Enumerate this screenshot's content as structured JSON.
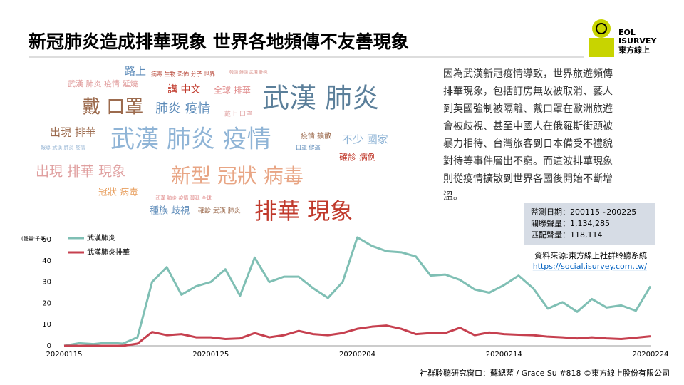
{
  "header": {
    "title": "新冠肺炎造成排華現象 世界各地頻傳不友善現象"
  },
  "logo": {
    "line1": "EOL",
    "line2": "ISURVEY",
    "line3": "東方線上"
  },
  "wordcloud": [
    "路上",
    "病毒 生物 恐怖 分子 世界",
    "韓國 歸國 武漢 肺炎",
    "武漢 肺炎 疫情 延燒",
    "講 中文",
    "全球 排華",
    "武漢 肺炎",
    "戴 口罩",
    "肺炎 疫情",
    "戴上 口罩",
    "出現 排華",
    "武漢 肺炎 疫情",
    "疫情 擴散",
    "不少 國家",
    "報導 武漢 肺炎 疫情",
    "口罩 健達",
    "確診 病例",
    "出現 排華 現象",
    "新型 冠狀 病毒",
    "冠狀 病毒",
    "武漢 肺炎 疫情 蔓延 全球",
    "種族 歧視",
    "確診 武漢 肺炎",
    "排華 現象"
  ],
  "description": [
    "因為武漢新冠疫情導致，世界旅遊頻傳",
    "排華現象，包括訂房無故被取消、藝人",
    "到英國強制被隔離、戴口罩在歐洲旅遊",
    "會被歧視、甚至中國人在俄羅斯街頭被",
    "暴力相待、台灣旅客到日本備受不禮貌",
    "對待等事件層出不窮。而這波排華現象",
    "則從疫情擴散到世界各國後開始不斷增",
    "溫。"
  ],
  "info_box": [
    "監測日期：200115~200225",
    "關聯聲量：1,134,285",
    "匹配聲量：118,114"
  ],
  "source": {
    "label": "資料來源:東方線上社群聆聽系統",
    "url": "https://social.isurvey.com.tw/"
  },
  "footer": "社群聆聽研究窗口：蘇緦藍  / Grace Su  #818 ©東方線上股份有限公司",
  "chart_data": {
    "type": "line",
    "y_label": "(聲量:千筆)",
    "categories": [
      "20200115",
      null,
      null,
      null,
      null,
      null,
      null,
      null,
      null,
      null,
      "20200125",
      null,
      null,
      null,
      null,
      null,
      null,
      null,
      null,
      null,
      "20200204",
      null,
      null,
      null,
      null,
      null,
      null,
      null,
      null,
      null,
      "20200214",
      null,
      null,
      null,
      null,
      null,
      null,
      null,
      null,
      null,
      "20200224"
    ],
    "series": [
      {
        "name": "武漢肺炎",
        "color": "#7fbfb4",
        "values": [
          0,
          1.2,
          0.8,
          1.5,
          1,
          4,
          30,
          37,
          24,
          28,
          30,
          36,
          23.5,
          41.5,
          30,
          32.5,
          32.5,
          27,
          22.5,
          30,
          51,
          47,
          44.5,
          44,
          42,
          33,
          33.5,
          31,
          26.5,
          25,
          28.5,
          33,
          27,
          17.5,
          20.5,
          16,
          22,
          18,
          19,
          16.5,
          28
        ]
      },
      {
        "name": "武漢肺炎排華",
        "color": "#c6404f",
        "values": [
          0,
          0,
          0,
          0,
          0,
          1,
          6.5,
          5,
          5.5,
          4,
          4,
          3.2,
          3.5,
          6,
          4,
          5,
          7,
          5.5,
          5,
          6,
          8,
          9,
          9.5,
          8,
          5.5,
          6,
          6,
          8.5,
          5,
          6.3,
          5.5,
          5.2,
          5,
          4.3,
          4,
          3.5,
          4,
          3.5,
          3.2,
          3.8,
          4.5
        ]
      }
    ],
    "ylim": [
      0,
      52
    ],
    "yticks": [
      0,
      10,
      20,
      30,
      40,
      50
    ],
    "grid": false
  }
}
